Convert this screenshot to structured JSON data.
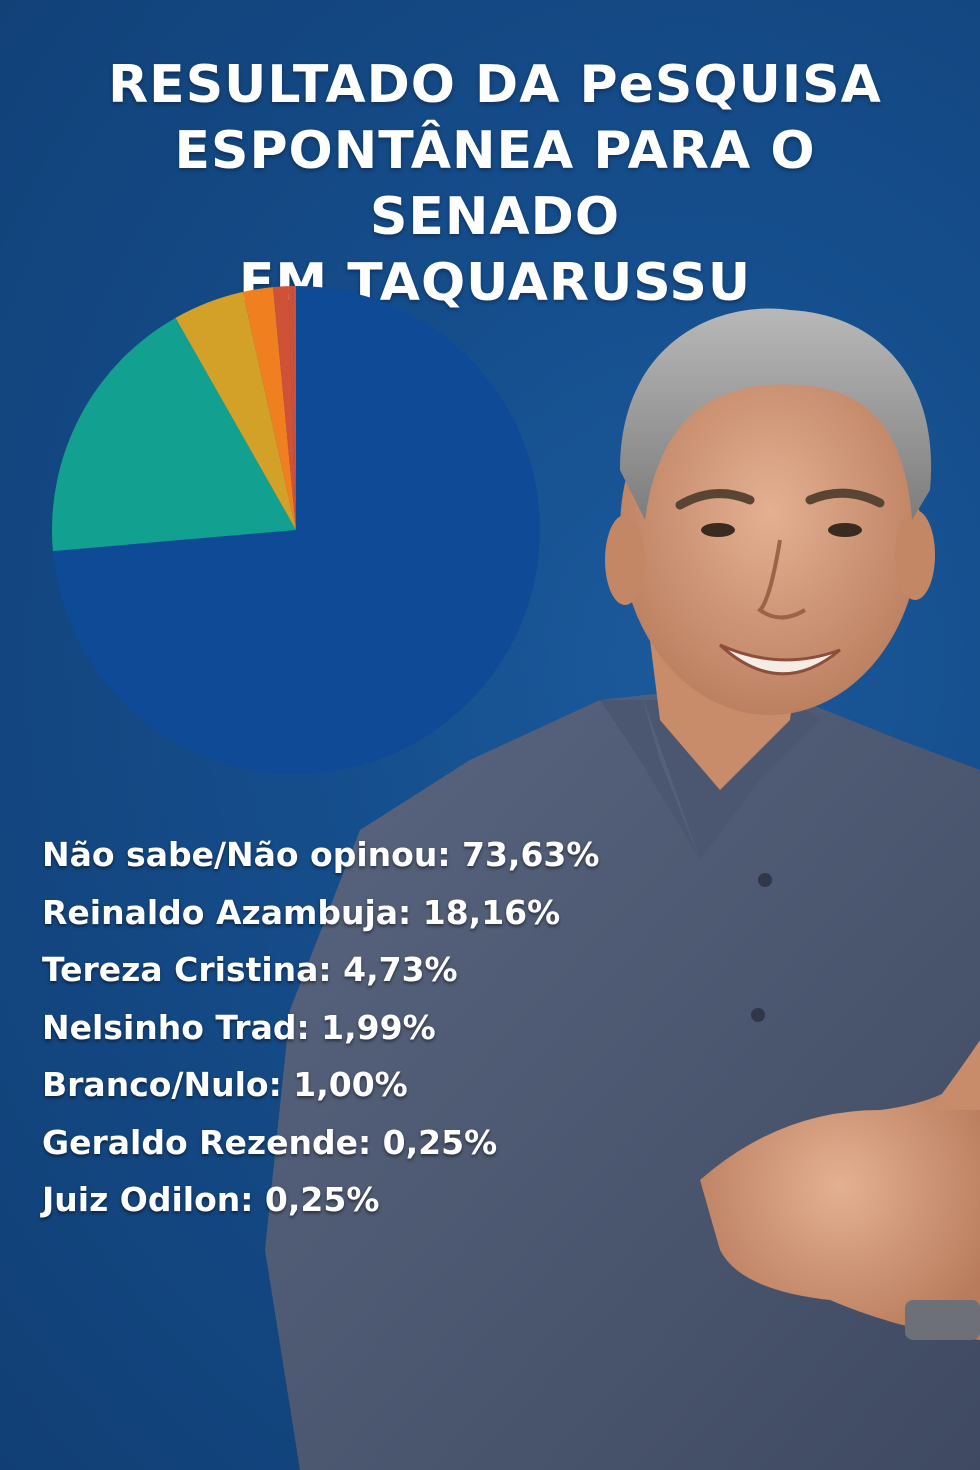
{
  "title_lines": [
    "RESULTADO DA PeSQUISA",
    "ESPONTÂNEA PARA O SENADO",
    "EM TAQUARUSSU"
  ],
  "chart_data": {
    "type": "pie",
    "title": "RESULTADO DA PeSQUISA ESPONTÂNEA PARA O SENADO EM TAQUARUSSU",
    "slices": [
      {
        "label": "Não sabe/Não opinou",
        "value": 73.63,
        "color": "#0f4a97"
      },
      {
        "label": "Reinaldo Azambuja",
        "value": 18.16,
        "color": "#12a090"
      },
      {
        "label": "Tereza Cristina",
        "value": 4.73,
        "color": "#d3a128"
      },
      {
        "label": "Nelsinho Trad",
        "value": 1.99,
        "color": "#f0801f"
      },
      {
        "label": "Branco/Nulo",
        "value": 1.0,
        "color": "#cf5136"
      },
      {
        "label": "Geraldo Rezende",
        "value": 0.25,
        "color": "#cf5136"
      },
      {
        "label": "Juiz Odilon",
        "value": 0.25,
        "color": "#cf5136"
      }
    ]
  },
  "legend": [
    "Não sabe/Não opinou: 73,63%",
    "Reinaldo Azambuja: 18,16%",
    "Tereza Cristina: 4,73%",
    "Nelsinho Trad: 1,99%",
    "Branco/Nulo: 1,00%",
    "Geraldo Rezende: 0,25%",
    "Juiz Odilon: 0,25%"
  ]
}
